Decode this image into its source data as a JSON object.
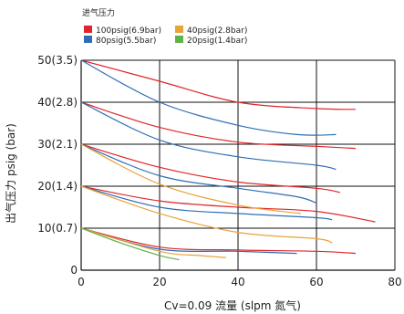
{
  "chart_data": {
    "type": "line",
    "title": "",
    "legend_title": "进气压力",
    "legend_position": "top-left",
    "xlabel": "Cv=0.09  流量  (slpm 氮气)",
    "ylabel": "出气压力 psig (bar)",
    "xlim": [
      0,
      80
    ],
    "ylim": [
      0,
      50
    ],
    "grid": true,
    "x_ticks": [
      {
        "value": 0,
        "label": "0"
      },
      {
        "value": 20,
        "label": "20"
      },
      {
        "value": 40,
        "label": "40"
      },
      {
        "value": 60,
        "label": "60"
      },
      {
        "value": 80,
        "label": "80"
      }
    ],
    "y_ticks": [
      {
        "value": 0,
        "label": "0"
      },
      {
        "value": 10,
        "label": "10(0.7)"
      },
      {
        "value": 20,
        "label": "20(1.4)"
      },
      {
        "value": 30,
        "label": "30(2.1)"
      },
      {
        "value": 40,
        "label": "40(2.8)"
      },
      {
        "value": 50,
        "label": "50(3.5)"
      }
    ],
    "series": [
      {
        "name": "100psig(6.9bar)",
        "color": "#e0262a",
        "curves": [
          [
            [
              0,
              50
            ],
            [
              20,
              45
            ],
            [
              40,
              40
            ],
            [
              60,
              38.5
            ],
            [
              70,
              38.3
            ]
          ],
          [
            [
              0,
              40
            ],
            [
              20,
              34
            ],
            [
              40,
              30.5
            ],
            [
              60,
              29.5
            ],
            [
              70,
              29
            ]
          ],
          [
            [
              0,
              30
            ],
            [
              20,
              24.5
            ],
            [
              40,
              21
            ],
            [
              60,
              19.5
            ],
            [
              66,
              18.5
            ]
          ],
          [
            [
              0,
              20
            ],
            [
              20,
              16.5
            ],
            [
              40,
              15
            ],
            [
              60,
              14
            ],
            [
              75,
              11.5
            ]
          ],
          [
            [
              0,
              10
            ],
            [
              20,
              5.5
            ],
            [
              40,
              4.8
            ],
            [
              60,
              4.5
            ],
            [
              70,
              4
            ]
          ]
        ]
      },
      {
        "name": "80psig(5.5bar)",
        "color": "#2f6eb5",
        "curves": [
          [
            [
              0,
              50
            ],
            [
              20,
              40
            ],
            [
              40,
              34.5
            ],
            [
              55,
              32.3
            ],
            [
              65,
              32.3
            ]
          ],
          [
            [
              0,
              40
            ],
            [
              20,
              31
            ],
            [
              40,
              27
            ],
            [
              60,
              25
            ],
            [
              65,
              24
            ]
          ],
          [
            [
              0,
              30
            ],
            [
              20,
              22.5
            ],
            [
              40,
              19.5
            ],
            [
              55,
              17.5
            ],
            [
              60,
              16
            ]
          ],
          [
            [
              0,
              20
            ],
            [
              20,
              15
            ],
            [
              40,
              13.5
            ],
            [
              60,
              12.5
            ],
            [
              64,
              12
            ]
          ],
          [
            [
              0,
              10
            ],
            [
              20,
              5
            ],
            [
              40,
              4.5
            ],
            [
              55,
              4
            ]
          ]
        ]
      },
      {
        "name": "40psig(2.8bar)",
        "color": "#e8a33a",
        "curves": [
          [
            [
              0,
              30
            ],
            [
              20,
              20.5
            ],
            [
              40,
              15.5
            ],
            [
              56,
              13.5
            ]
          ],
          [
            [
              0,
              20
            ],
            [
              20,
              13.5
            ],
            [
              40,
              9
            ],
            [
              60,
              7.5
            ],
            [
              64,
              6.5
            ]
          ],
          [
            [
              0,
              10
            ],
            [
              20,
              4.5
            ],
            [
              30,
              3.5
            ],
            [
              37,
              3
            ]
          ]
        ]
      },
      {
        "name": "20psig(1.4bar)",
        "color": "#5fb14a",
        "curves": [
          [
            [
              0,
              10
            ],
            [
              10,
              6.5
            ],
            [
              20,
              3.5
            ],
            [
              25,
              2.5
            ]
          ]
        ]
      }
    ]
  }
}
